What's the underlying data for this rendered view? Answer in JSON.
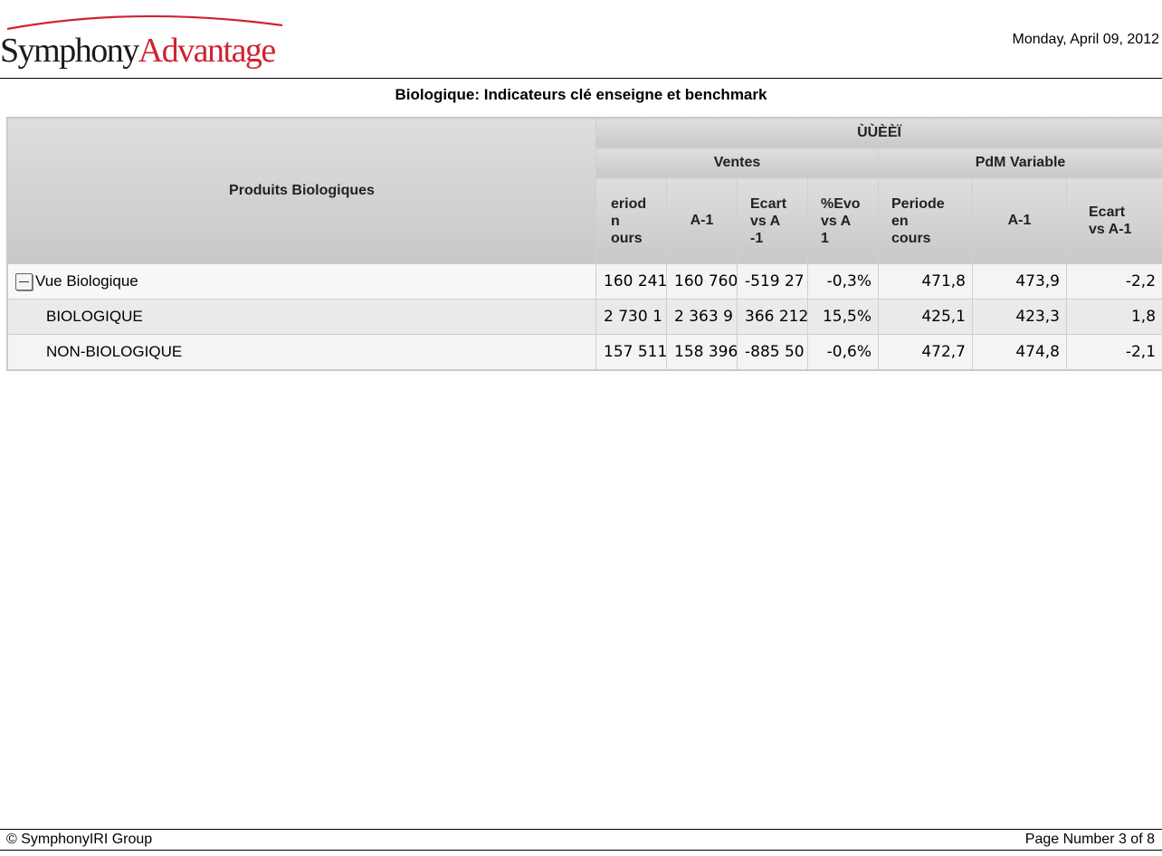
{
  "header": {
    "logo_part1": "Symphony",
    "logo_part2": "Advantage",
    "date": "Monday, April 09, 2012"
  },
  "report_title": "Biologique: Indicateurs clé enseigne et benchmark",
  "grid": {
    "row_header": "Produits Biologiques",
    "group_header": "ÙÙÈÈÏ",
    "ventes_header": "Ventes",
    "pdm_header": "PdM Variable",
    "columns": [
      "eriod\nn\nours",
      "A-1",
      "Ecart\nvs A\n-1",
      "%Evo\nvs A\n1",
      "Periode\nen\ncours",
      "A-1",
      "Ecart\nvs A-1"
    ],
    "rows": [
      {
        "label": "Vue Biologique",
        "values": [
          "160 241",
          "160 760",
          "-519 27",
          "-0,3%",
          "471,8",
          "473,9",
          "-2,2"
        ]
      },
      {
        "label": "BIOLOGIQUE",
        "values": [
          "2 730 1",
          "2 363 9",
          "366 212",
          "15,5%",
          "425,1",
          "423,3",
          "1,8"
        ]
      },
      {
        "label": "NON-BIOLOGIQUE",
        "values": [
          "157 511",
          "158 396",
          "-885 50",
          "-0,6%",
          "472,7",
          "474,8",
          "-2,1"
        ]
      }
    ]
  },
  "footer": {
    "copyright": "© SymphonyIRI Group",
    "page": "Page Number 3 of 8"
  },
  "colors": {
    "logo_red": "#cf2430",
    "header_gray": "#d0d0d0"
  }
}
